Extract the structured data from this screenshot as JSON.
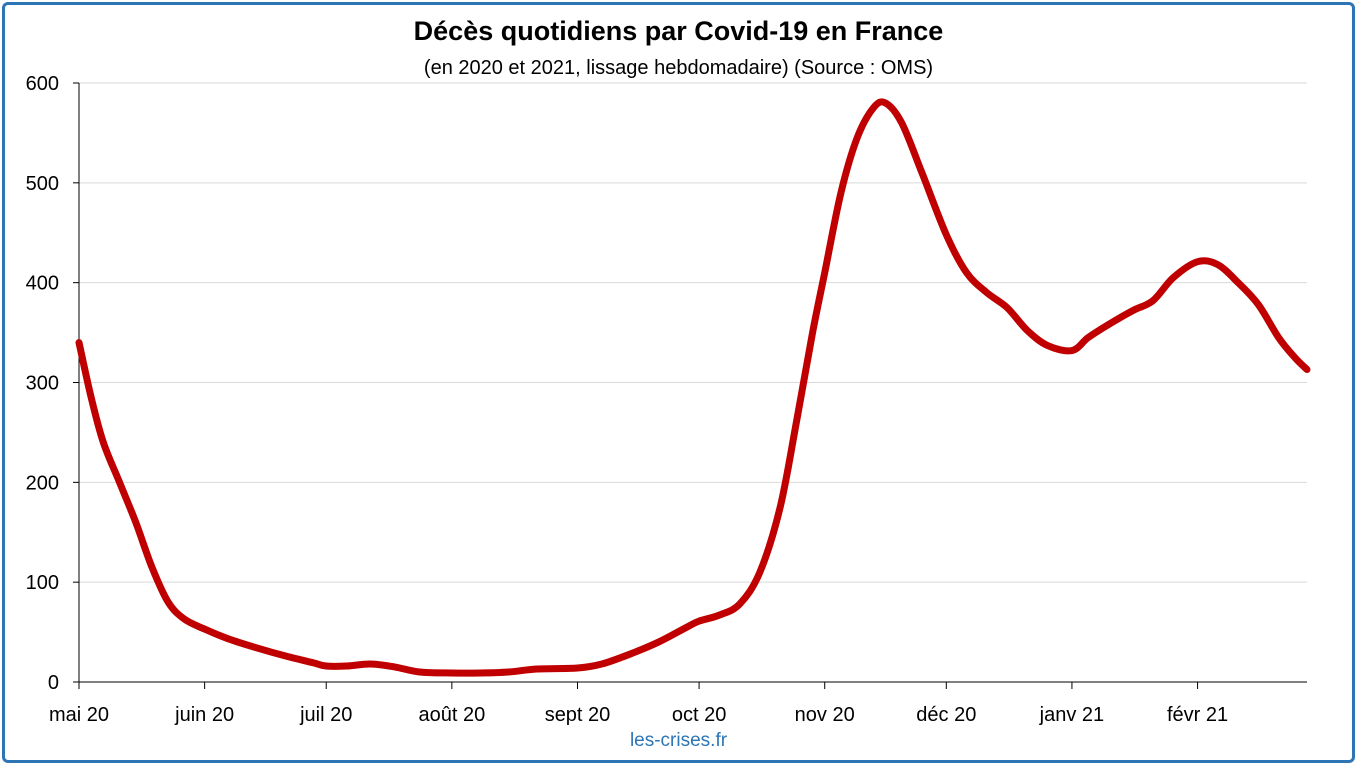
{
  "chart_data": {
    "type": "line",
    "title": "Décès quotidiens par Covid-19 en France",
    "subtitle": "(en 2020 et 2021, lissage hebdomadaire) (Source : OMS)",
    "source_text": "les-crises.fr",
    "xlabel": "",
    "ylabel": "",
    "ylim": [
      0,
      600
    ],
    "yticks": [
      0,
      100,
      200,
      300,
      400,
      500,
      600
    ],
    "grid": true,
    "legend": "none",
    "x_axis": {
      "start": "2020-05-01",
      "end": "2021-02-28",
      "tick_dates": [
        "2020-05-01",
        "2020-06-01",
        "2020-07-01",
        "2020-08-01",
        "2020-09-01",
        "2020-10-01",
        "2020-11-01",
        "2020-12-01",
        "2021-01-01",
        "2021-02-01"
      ],
      "tick_labels": [
        "mai 20",
        "juin 20",
        "juil 20",
        "août 20",
        "sept 20",
        "oct 20",
        "nov 20",
        "déc 20",
        "janv 21",
        "févr 21"
      ]
    },
    "series": [
      {
        "color": "#c00000",
        "points": [
          [
            "2020-05-01",
            340
          ],
          [
            "2020-05-04",
            285
          ],
          [
            "2020-05-07",
            240
          ],
          [
            "2020-05-11",
            200
          ],
          [
            "2020-05-15",
            160
          ],
          [
            "2020-05-19",
            115
          ],
          [
            "2020-05-23",
            80
          ],
          [
            "2020-05-27",
            63
          ],
          [
            "2020-06-01",
            53
          ],
          [
            "2020-06-07",
            43
          ],
          [
            "2020-06-14",
            34
          ],
          [
            "2020-06-21",
            26
          ],
          [
            "2020-06-28",
            19
          ],
          [
            "2020-07-01",
            16
          ],
          [
            "2020-07-06",
            16
          ],
          [
            "2020-07-12",
            18
          ],
          [
            "2020-07-18",
            15
          ],
          [
            "2020-07-24",
            10
          ],
          [
            "2020-08-01",
            9
          ],
          [
            "2020-08-08",
            9
          ],
          [
            "2020-08-15",
            10
          ],
          [
            "2020-08-22",
            13
          ],
          [
            "2020-09-01",
            14
          ],
          [
            "2020-09-07",
            18
          ],
          [
            "2020-09-14",
            28
          ],
          [
            "2020-09-21",
            40
          ],
          [
            "2020-09-28",
            55
          ],
          [
            "2020-10-01",
            61
          ],
          [
            "2020-10-06",
            67
          ],
          [
            "2020-10-11",
            78
          ],
          [
            "2020-10-16",
            110
          ],
          [
            "2020-10-21",
            175
          ],
          [
            "2020-10-25",
            260
          ],
          [
            "2020-10-29",
            350
          ],
          [
            "2020-11-01",
            410
          ],
          [
            "2020-11-05",
            490
          ],
          [
            "2020-11-09",
            545
          ],
          [
            "2020-11-13",
            575
          ],
          [
            "2020-11-16",
            580
          ],
          [
            "2020-11-20",
            560
          ],
          [
            "2020-11-25",
            510
          ],
          [
            "2020-12-01",
            448
          ],
          [
            "2020-12-06",
            410
          ],
          [
            "2020-12-11",
            390
          ],
          [
            "2020-12-16",
            375
          ],
          [
            "2020-12-21",
            352
          ],
          [
            "2020-12-26",
            337
          ],
          [
            "2021-01-01",
            332
          ],
          [
            "2021-01-05",
            345
          ],
          [
            "2021-01-10",
            358
          ],
          [
            "2021-01-16",
            372
          ],
          [
            "2021-01-21",
            382
          ],
          [
            "2021-01-26",
            405
          ],
          [
            "2021-02-01",
            421
          ],
          [
            "2021-02-06",
            418
          ],
          [
            "2021-02-11",
            400
          ],
          [
            "2021-02-16",
            378
          ],
          [
            "2021-02-21",
            345
          ],
          [
            "2021-02-25",
            325
          ],
          [
            "2021-02-28",
            313
          ]
        ]
      }
    ]
  }
}
